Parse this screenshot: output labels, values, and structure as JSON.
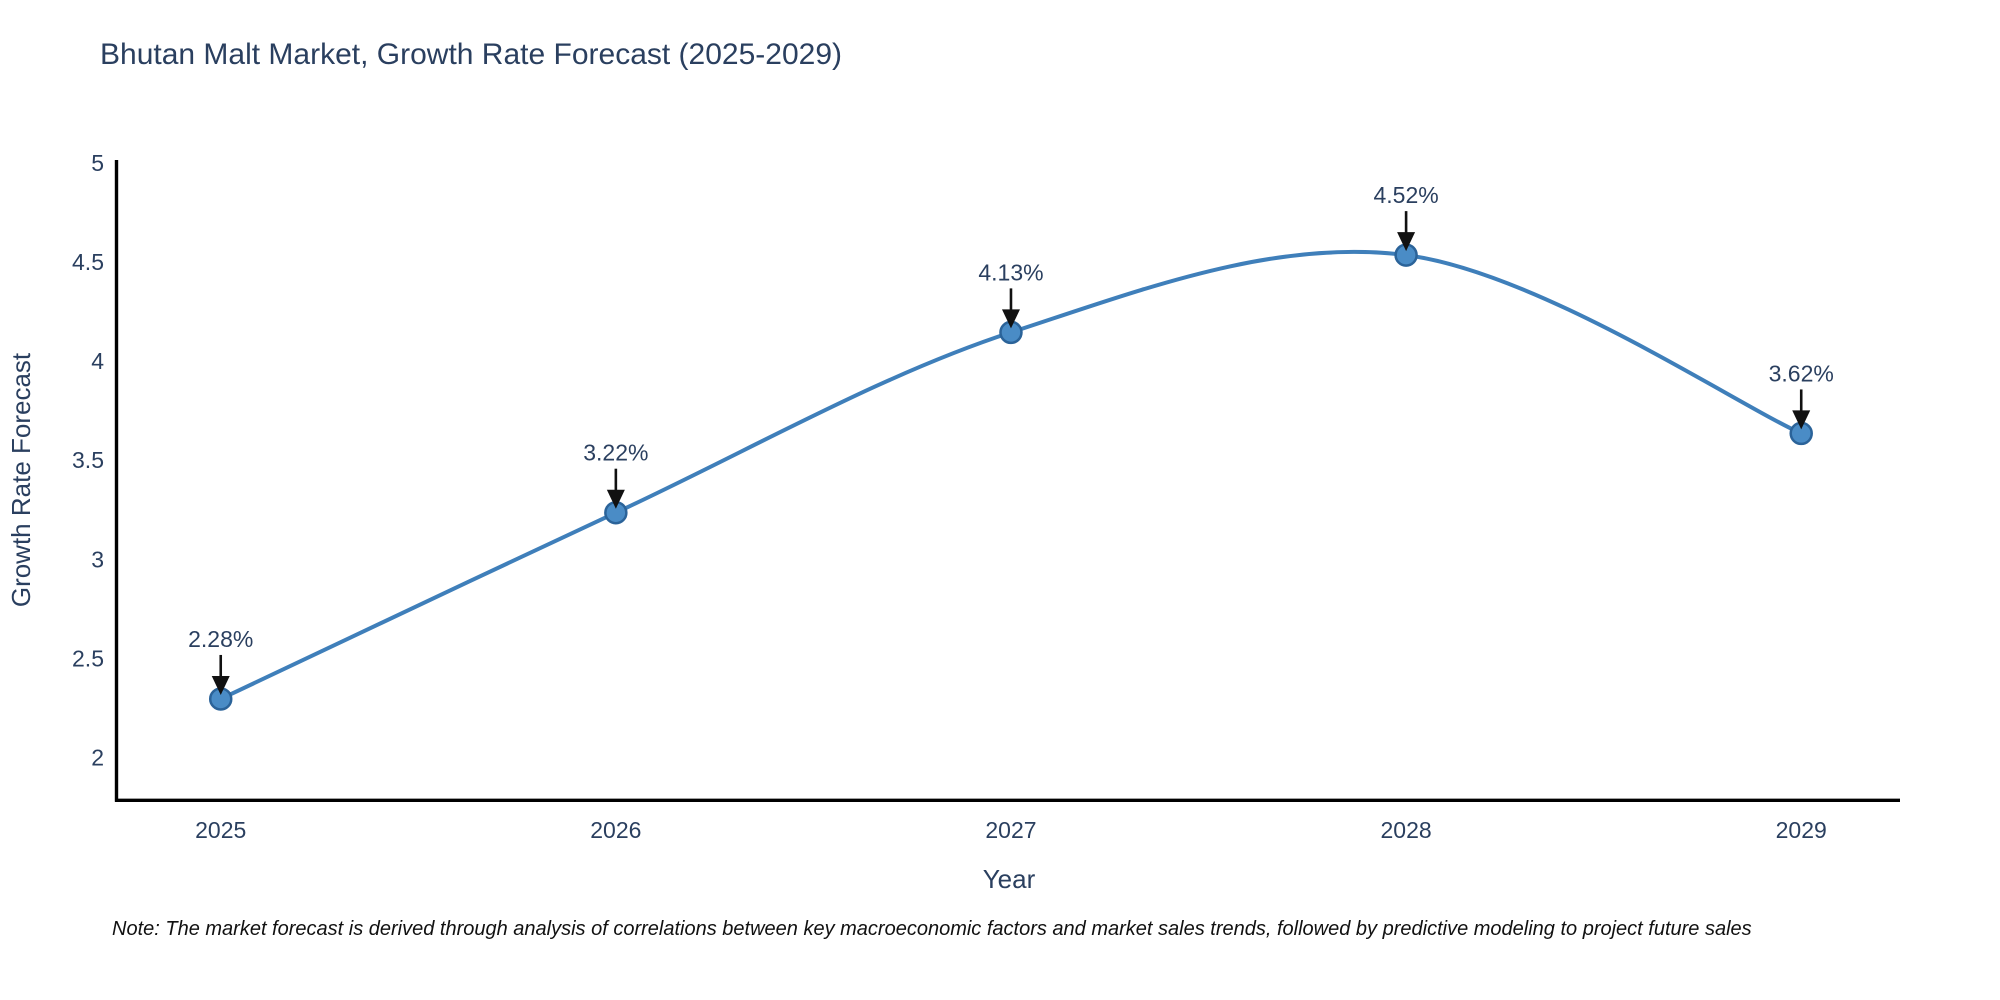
{
  "chart_data": {
    "type": "line",
    "title": "Bhutan Malt Market, Growth Rate Forecast (2025-2029)",
    "xlabel": "Year",
    "ylabel": "Growth Rate Forecast",
    "x": [
      2025,
      2026,
      2027,
      2028,
      2029
    ],
    "x_tick_labels": [
      "2025",
      "2026",
      "2027",
      "2028",
      "2029"
    ],
    "series": [
      {
        "name": "Growth Rate Forecast",
        "values": [
          2.28,
          3.22,
          4.13,
          4.52,
          3.62
        ],
        "point_labels": [
          "2.28%",
          "3.22%",
          "4.13%",
          "4.52%",
          "3.62%"
        ]
      }
    ],
    "y_ticks": [
      2,
      2.5,
      3,
      3.5,
      4,
      4.5,
      5
    ],
    "y_tick_labels": [
      "2",
      "2.5",
      "3",
      "3.5",
      "4",
      "4.5",
      "5"
    ],
    "xlim": [
      2024.74,
      2029.25
    ],
    "ylim": [
      1.77,
      5.0
    ],
    "grid": false,
    "legend_position": "none",
    "line_shape": "spline",
    "annotation_style": "value label with downward black arrow to point",
    "colors": {
      "line": "#3f7fba",
      "marker_fill": "#4a8cc6",
      "marker_edge": "#2b6399",
      "axis": "#000000",
      "text": "#2a3f5f",
      "annotation_arrow": "#111111",
      "background": "#ffffff"
    }
  },
  "note": "Note: The market forecast is derived through analysis of correlations between key macroeconomic factors and market sales trends, followed by predictive modeling to project future sales"
}
